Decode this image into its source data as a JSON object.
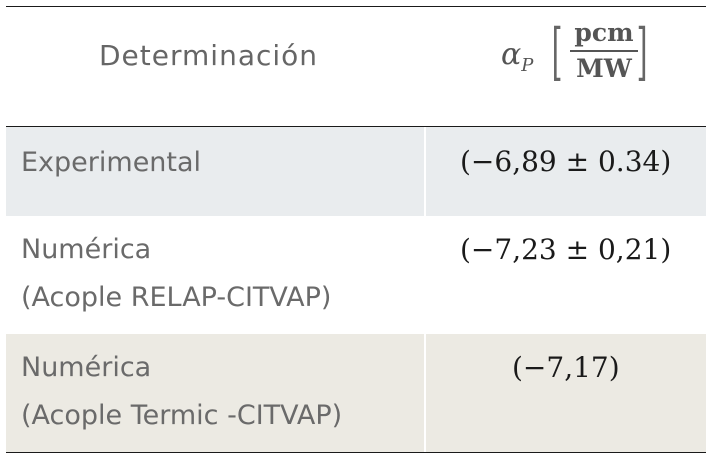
{
  "header": {
    "col1": "Determinación",
    "col2_symbol": "α",
    "col2_subscript": "P",
    "col2_unit_num": "pcm",
    "col2_unit_den": "MW"
  },
  "rows": [
    {
      "label_line1": "Experimental",
      "label_line2": "",
      "value": "(−6,89 ± 0.34)",
      "bg": "#e9ecee"
    },
    {
      "label_line1": "Numérica",
      "label_line2": "(Acople RELAP-CITVAP)",
      "value": "(−7,23 ± 0,21)",
      "bg": "#ffffff"
    },
    {
      "label_line1": "Numérica",
      "label_line2": "(Acople Termic -CITVAP)",
      "value": "(−7,17)",
      "bg": "#eceae3"
    }
  ]
}
